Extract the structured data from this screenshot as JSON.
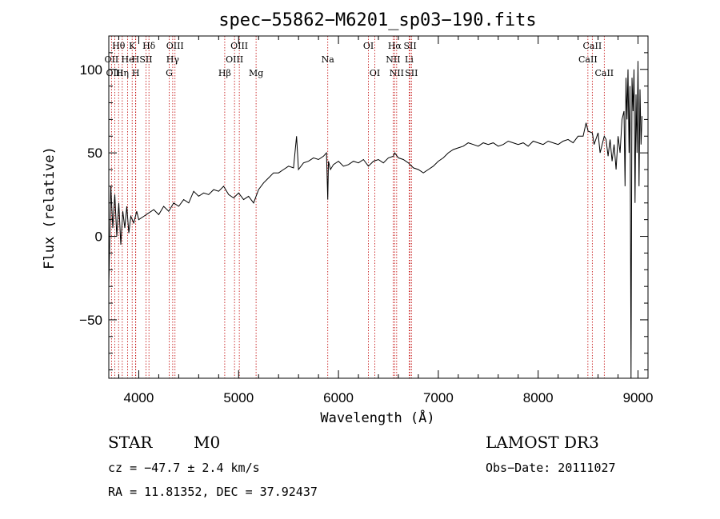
{
  "chart_data": {
    "type": "line",
    "title": "spec−55862−M6201_sp03−190.fits",
    "xlabel": "Wavelength (Å)",
    "ylabel": "Flux (relative)",
    "xlim": [
      3700,
      9100
    ],
    "ylim": [
      -85,
      120
    ],
    "x_ticks": [
      4000,
      5000,
      6000,
      7000,
      8000,
      9000
    ],
    "x_tick_labels": [
      "4000",
      "5000",
      "6000",
      "7000",
      "8000",
      "9000"
    ],
    "y_ticks": [
      -50,
      0,
      50,
      100
    ],
    "y_tick_labels": [
      "−50",
      "0",
      "50",
      "100"
    ],
    "series": [
      {
        "name": "spectrum",
        "color": "#000000",
        "x": [
          3700,
          3720,
          3740,
          3760,
          3780,
          3800,
          3820,
          3840,
          3860,
          3880,
          3900,
          3920,
          3950,
          3980,
          4000,
          4050,
          4100,
          4150,
          4200,
          4250,
          4300,
          4350,
          4400,
          4450,
          4500,
          4550,
          4600,
          4650,
          4700,
          4750,
          4800,
          4850,
          4900,
          4950,
          5000,
          5050,
          5100,
          5150,
          5200,
          5250,
          5300,
          5350,
          5400,
          5450,
          5500,
          5550,
          5580,
          5600,
          5650,
          5700,
          5750,
          5800,
          5850,
          5880,
          5893,
          5900,
          5920,
          5950,
          6000,
          6050,
          6100,
          6150,
          6200,
          6250,
          6300,
          6350,
          6400,
          6450,
          6500,
          6550,
          6563,
          6600,
          6650,
          6700,
          6750,
          6800,
          6850,
          6900,
          6950,
          7000,
          7050,
          7100,
          7150,
          7200,
          7250,
          7300,
          7350,
          7400,
          7450,
          7500,
          7550,
          7600,
          7650,
          7700,
          7750,
          7800,
          7850,
          7900,
          7950,
          8000,
          8050,
          8100,
          8150,
          8200,
          8250,
          8300,
          8350,
          8400,
          8450,
          8480,
          8500,
          8542,
          8560,
          8600,
          8620,
          8662,
          8680,
          8700,
          8720,
          8740,
          8760,
          8780,
          8800,
          8820,
          8840,
          8860,
          8870,
          8880,
          8890,
          8900,
          8910,
          8920,
          8930,
          8940,
          8950,
          8960,
          8970,
          8980,
          8990,
          9000,
          9010,
          9020,
          9030,
          9040
        ],
        "y": [
          -30,
          30,
          5,
          25,
          0,
          20,
          -5,
          15,
          5,
          18,
          2,
          12,
          8,
          15,
          10,
          12,
          14,
          16,
          13,
          18,
          15,
          20,
          18,
          22,
          20,
          27,
          24,
          26,
          25,
          28,
          27,
          30,
          25,
          23,
          26,
          22,
          24,
          20,
          28,
          32,
          35,
          38,
          38,
          40,
          42,
          41,
          60,
          40,
          44,
          45,
          47,
          46,
          48,
          50,
          22,
          45,
          40,
          43,
          45,
          42,
          43,
          45,
          44,
          46,
          42,
          45,
          46,
          44,
          47,
          48,
          50,
          47,
          46,
          44,
          41,
          40,
          38,
          40,
          42,
          45,
          47,
          50,
          52,
          53,
          54,
          56,
          55,
          54,
          56,
          55,
          56,
          54,
          55,
          57,
          56,
          55,
          56,
          54,
          57,
          56,
          55,
          57,
          56,
          55,
          57,
          58,
          56,
          60,
          60,
          68,
          63,
          62,
          55,
          62,
          50,
          60,
          58,
          48,
          58,
          45,
          55,
          40,
          60,
          50,
          70,
          75,
          30,
          95,
          70,
          100,
          50,
          90,
          -85,
          95,
          75,
          100,
          20,
          85,
          50,
          105,
          30,
          88,
          55,
          72
        ]
      }
    ],
    "spectral_lines": [
      {
        "label": "Hθ",
        "wavelength": 3798,
        "row": 0
      },
      {
        "label": "K",
        "wavelength": 3934,
        "row": 0
      },
      {
        "label": "Hδ",
        "wavelength": 4102,
        "row": 0
      },
      {
        "label": "OIII",
        "wavelength": 4363,
        "row": 0
      },
      {
        "label": "OIII",
        "wavelength": 5007,
        "row": 0
      },
      {
        "label": "OI",
        "wavelength": 6300,
        "row": 0
      },
      {
        "label": "Hα",
        "wavelength": 6563,
        "row": 0
      },
      {
        "label": "SII",
        "wavelength": 6717,
        "row": 0
      },
      {
        "label": "CaII",
        "wavelength": 8542,
        "row": 0
      },
      {
        "label": "OII",
        "wavelength": 3727,
        "row": 1
      },
      {
        "label": "He",
        "wavelength": 3889,
        "row": 1
      },
      {
        "label": "H",
        "wavelength": 3968,
        "row": 1
      },
      {
        "label": "SII",
        "wavelength": 4072,
        "row": 1
      },
      {
        "label": "Hγ",
        "wavelength": 4340,
        "row": 1
      },
      {
        "label": "OIII",
        "wavelength": 4959,
        "row": 1
      },
      {
        "label": "Na",
        "wavelength": 5893,
        "row": 1
      },
      {
        "label": "NII",
        "wavelength": 6548,
        "row": 1
      },
      {
        "label": "Li",
        "wavelength": 6708,
        "row": 1
      },
      {
        "label": "CaII",
        "wavelength": 8498,
        "row": 1
      },
      {
        "label": "OIII",
        "wavelength": 3760,
        "row": 2
      },
      {
        "label": "Hη",
        "wavelength": 3835,
        "row": 2
      },
      {
        "label": "H",
        "wavelength": 3970,
        "row": 2
      },
      {
        "label": "G",
        "wavelength": 4305,
        "row": 2
      },
      {
        "label": "Hβ",
        "wavelength": 4861,
        "row": 2
      },
      {
        "label": "Mg",
        "wavelength": 5175,
        "row": 2
      },
      {
        "label": "OI",
        "wavelength": 6364,
        "row": 2
      },
      {
        "label": "NII",
        "wavelength": 6583,
        "row": 2
      },
      {
        "label": "SII",
        "wavelength": 6731,
        "row": 2
      },
      {
        "label": "CaII",
        "wavelength": 8662,
        "row": 2
      }
    ],
    "line_marker_color": "#c00000"
  },
  "footer": {
    "object_class": "STAR",
    "subclass": "M0",
    "redshift": "cz = −47.7 ± 2.4 km/s",
    "coords": "RA =  11.81352, DEC =  37.92437",
    "survey": "LAMOST DR3",
    "obs_date": "Obs−Date: 20111027"
  }
}
